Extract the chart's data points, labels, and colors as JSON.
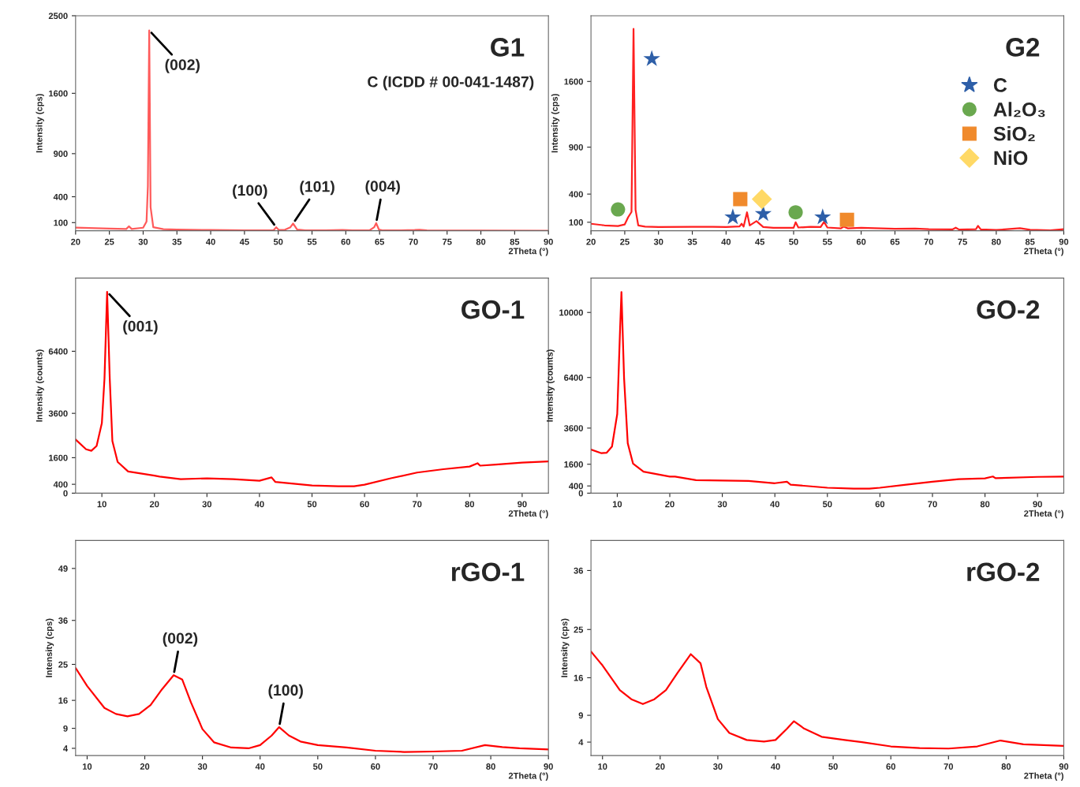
{
  "chart_data": [
    {
      "type": "line",
      "title": "G1",
      "subtitle": "C (ICDD # 00-041-1487)",
      "xlabel": "2Theta (°)",
      "ylabel": "Intensity (cps)",
      "xlim": [
        20,
        90
      ],
      "ylim": [
        5,
        2500
      ],
      "xticks": [
        20,
        25,
        30,
        35,
        40,
        45,
        50,
        55,
        60,
        65,
        70,
        75,
        80,
        85,
        90
      ],
      "yticks": [
        100,
        400,
        900,
        1600,
        2500
      ],
      "series": [
        {
          "color": "#ff5a5a",
          "x": [
            20,
            25,
            27.5,
            27.9,
            28.3,
            30,
            30.5,
            30.7,
            30.9,
            31.1,
            31.5,
            33,
            35,
            40,
            45,
            48,
            49.3,
            49.7,
            50.1,
            51,
            51.8,
            52.2,
            52.8,
            54,
            57,
            59.5,
            61,
            63.5,
            64.2,
            64.5,
            64.9,
            65.5,
            68,
            70.2,
            70.9,
            72,
            75,
            80,
            90
          ],
          "values": [
            41,
            30,
            26,
            57,
            26,
            41,
            112,
            520,
            2330,
            280,
            46,
            24,
            19,
            14,
            11,
            10,
            11,
            46,
            14,
            17,
            46,
            90,
            20,
            10,
            9,
            14,
            9,
            9,
            46,
            94,
            20,
            9,
            9,
            14,
            18,
            10,
            8,
            7,
            6.5
          ]
        }
      ],
      "annotations": [
        {
          "text": "(002)",
          "x": 30.9,
          "y": 2330
        },
        {
          "text": "(100)",
          "x": 49.7,
          "y": 46
        },
        {
          "text": "(101)",
          "x": 52.2,
          "y": 90
        },
        {
          "text": "(004)",
          "x": 64.5,
          "y": 94
        }
      ]
    },
    {
      "type": "line",
      "title": "G2",
      "xlabel": "2Theta (°)",
      "ylabel": "Intensity (cps)",
      "xlim": [
        20,
        90
      ],
      "ylim": [
        9,
        2300
      ],
      "xticks": [
        20,
        25,
        30,
        35,
        40,
        45,
        50,
        55,
        60,
        65,
        70,
        75,
        80,
        85,
        90
      ],
      "yticks": [
        100,
        400,
        900,
        1600
      ],
      "legend": "center right",
      "series": [
        {
          "color": "#ff2020",
          "x": [
            20,
            22,
            24,
            25,
            25.5,
            26,
            26.3,
            26.6,
            27,
            28,
            30,
            35,
            38,
            40,
            42,
            42.3,
            42.6,
            43.1,
            43.5,
            44.5,
            45.5,
            47,
            50,
            50.3,
            50.7,
            52.5,
            54,
            54.5,
            55,
            57,
            57.4,
            58,
            60,
            65,
            68,
            70,
            73.5,
            74,
            74.5,
            77,
            77.3,
            77.7,
            80,
            83.5,
            85,
            88,
            90
          ],
          "values": [
            84,
            67,
            60,
            77,
            153,
            210,
            2160,
            232,
            66,
            54,
            49,
            51,
            51,
            49,
            56,
            84,
            54,
            206,
            66,
            112,
            49,
            40,
            40,
            100,
            44,
            51,
            49,
            104,
            44,
            35,
            54,
            35,
            40,
            31,
            33,
            27,
            24,
            42,
            22,
            27,
            62,
            24,
            17,
            37,
            20,
            14,
            27
          ]
        },
        {
          "type": "scatter",
          "name": "C",
          "marker": "star",
          "color": "#2e5fa8",
          "x": [
            29,
            41,
            45.5,
            54.3
          ],
          "values": [
            1840,
            153,
            190,
            153
          ]
        },
        {
          "type": "scatter",
          "name": "Al₂O₃",
          "marker": "circle",
          "color": "#6aa84f",
          "x": [
            24,
            50.3
          ],
          "values": [
            237,
            206
          ]
        },
        {
          "type": "scatter",
          "name": "SiO₂",
          "marker": "square",
          "color": "#f08a2c",
          "x": [
            42.1,
            57.9
          ],
          "values": [
            346,
            126
          ]
        },
        {
          "type": "scatter",
          "name": "NiO",
          "marker": "diamond",
          "color": "#ffd966",
          "x": [
            45.3
          ],
          "values": [
            346
          ]
        }
      ]
    },
    {
      "type": "line",
      "title": "GO-1",
      "xlabel": "2Theta (°)",
      "ylabel": "Intensity (counts)",
      "xlim": [
        5,
        95
      ],
      "ylim": [
        0,
        9700
      ],
      "xticks": [
        10,
        20,
        30,
        40,
        50,
        60,
        70,
        80,
        90
      ],
      "yticks": [
        0,
        400,
        1600,
        3600,
        6400
      ],
      "series": [
        {
          "color": "#ff0000",
          "x": [
            5,
            7,
            8,
            9,
            10,
            10.5,
            11,
            11.5,
            12,
            13,
            15,
            20,
            21,
            25,
            30,
            35,
            40,
            42.3,
            43,
            50,
            55,
            58,
            60,
            65,
            70,
            75,
            80,
            81.5,
            82,
            85,
            90,
            95
          ],
          "values": [
            2420,
            1980,
            1910,
            2130,
            3160,
            5170,
            9080,
            5170,
            2350,
            1410,
            980,
            790,
            750,
            630,
            670,
            630,
            560,
            710,
            510,
            350,
            310,
            310,
            380,
            670,
            930,
            1080,
            1200,
            1350,
            1240,
            1290,
            1380,
            1430
          ]
        }
      ],
      "annotations": [
        {
          "text": "(001)",
          "x": 11,
          "y": 9080
        }
      ]
    },
    {
      "type": "line",
      "title": "GO-2",
      "xlabel": "2Theta (°)",
      "ylabel": "Intensity (counts)",
      "xlim": [
        5,
        95
      ],
      "ylim": [
        0,
        11900
      ],
      "xticks": [
        10,
        20,
        30,
        40,
        50,
        60,
        70,
        80,
        90
      ],
      "yticks": [
        0,
        400,
        1600,
        3600,
        6400,
        10000
      ],
      "series": [
        {
          "color": "#ff0000",
          "x": [
            5,
            7,
            8,
            9,
            10,
            10.5,
            10.8,
            11.3,
            12,
            13,
            15,
            20,
            21,
            25,
            30,
            35,
            40,
            42.3,
            43,
            50,
            55,
            58,
            60,
            65,
            70,
            75,
            80,
            81.5,
            82,
            90,
            95
          ],
          "values": [
            2410,
            2210,
            2240,
            2580,
            4380,
            8740,
            11130,
            6370,
            2760,
            1640,
            1190,
            920,
            920,
            720,
            700,
            680,
            550,
            630,
            470,
            300,
            250,
            250,
            300,
            470,
            630,
            770,
            820,
            920,
            830,
            900,
            920
          ]
        }
      ]
    },
    {
      "type": "line",
      "title": "rGO-1",
      "xlabel": "2Theta (°)",
      "ylabel": "Intensity (cps)",
      "xlim": [
        8,
        90
      ],
      "ylim": [
        2.2,
        56
      ],
      "xticks": [
        10,
        20,
        30,
        40,
        50,
        60,
        70,
        80,
        90
      ],
      "yticks": [
        4,
        9,
        16,
        25,
        36,
        49
      ],
      "series": [
        {
          "color": "#ff0000",
          "x": [
            8,
            10,
            13,
            15,
            17,
            19,
            21,
            23,
            25,
            26.5,
            28,
            30,
            32,
            35,
            38,
            40,
            42,
            43.3,
            45,
            47,
            50,
            55,
            60,
            65,
            70,
            75,
            79,
            82,
            85,
            90
          ],
          "values": [
            24.1,
            19.6,
            14.1,
            12.6,
            12,
            12.6,
            14.8,
            18.8,
            22.3,
            21.2,
            15.5,
            8.8,
            5.5,
            4.2,
            4.0,
            4.8,
            7.2,
            9.3,
            7.2,
            5.7,
            4.8,
            4.2,
            3.4,
            3.1,
            3.2,
            3.4,
            4.8,
            4.3,
            4.0,
            3.7
          ]
        }
      ],
      "annotations": [
        {
          "text": "(002)",
          "x": 25,
          "y": 22.3
        },
        {
          "text": "(100)",
          "x": 43.3,
          "y": 9.3
        }
      ]
    },
    {
      "type": "line",
      "title": "rGO-2",
      "xlabel": "2Theta (°)",
      "ylabel": "Intensity (cps)",
      "xlim": [
        8,
        90
      ],
      "ylim": [
        1.5,
        41.6
      ],
      "xticks": [
        10,
        20,
        30,
        40,
        50,
        60,
        70,
        80,
        90
      ],
      "yticks": [
        4,
        9,
        16,
        25,
        36
      ],
      "series": [
        {
          "color": "#ff0000",
          "x": [
            8,
            10,
            13,
            15,
            17,
            19,
            21,
            23,
            25.3,
            27,
            28,
            30,
            32,
            35,
            38,
            40,
            42,
            43.2,
            45,
            48,
            52,
            55,
            60,
            65,
            70,
            75,
            79,
            83,
            90
          ],
          "values": [
            20.9,
            18.3,
            13.7,
            12,
            11.1,
            12,
            13.7,
            16.9,
            20.4,
            18.7,
            14.3,
            8.3,
            5.7,
            4.4,
            4.1,
            4.4,
            6.5,
            7.9,
            6.5,
            5,
            4.4,
            4.0,
            3.2,
            2.9,
            2.8,
            3.2,
            4.3,
            3.6,
            3.3
          ]
        }
      ]
    }
  ]
}
